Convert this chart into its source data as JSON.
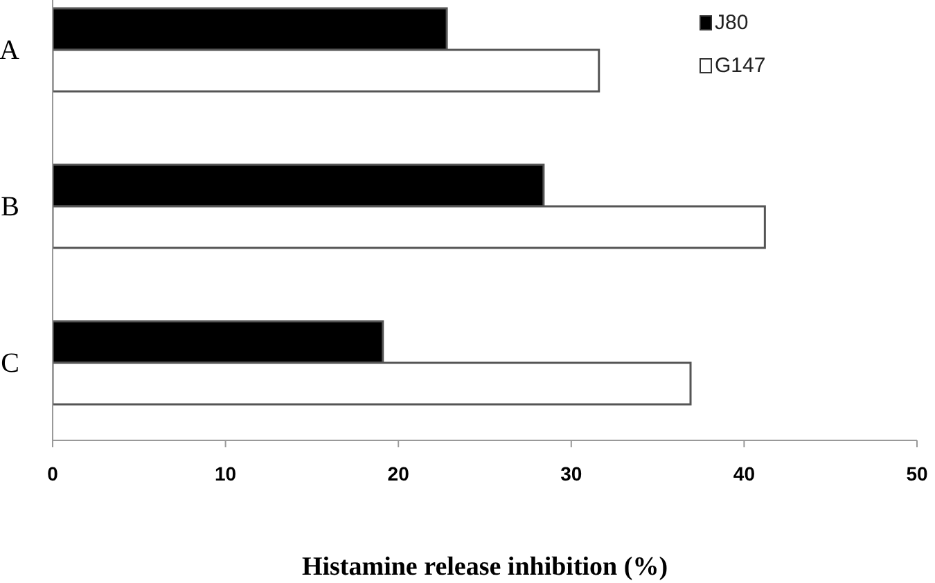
{
  "chart_data": {
    "type": "bar",
    "orientation": "horizontal",
    "xlabel": "Histamine release inhibition (%)",
    "categories": [
      "A",
      "B",
      "C"
    ],
    "series": [
      {
        "name": "J80",
        "color": "#000000",
        "values": [
          22.8,
          28.4,
          19.1
        ]
      },
      {
        "name": "G147",
        "color": "#ffffff",
        "values": [
          31.6,
          41.2,
          36.9
        ]
      }
    ],
    "xlim": [
      0,
      50
    ],
    "xticks": [
      0,
      10,
      20,
      30,
      40,
      50
    ],
    "grid": false,
    "legend": "top right"
  }
}
